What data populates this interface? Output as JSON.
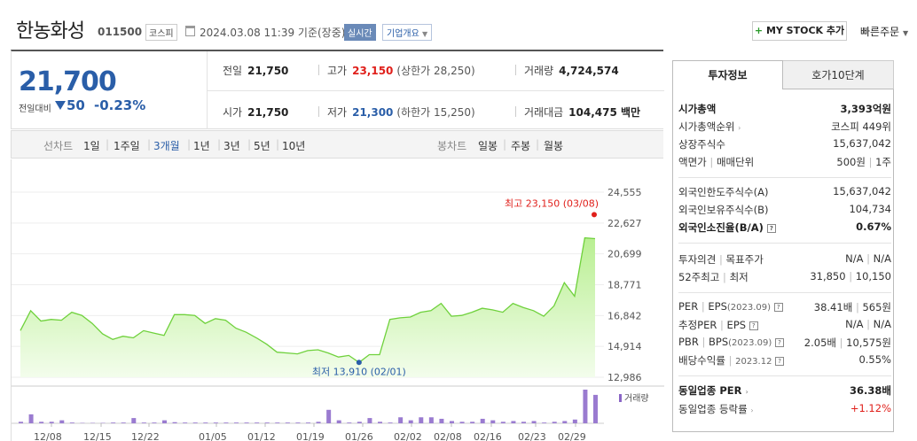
{
  "header": {
    "name": "한농화성",
    "code": "011500",
    "market": "코스피",
    "date": "2024.03.08 11:39 기준(장중)",
    "realtime": "실시간",
    "overview": "기업개요",
    "mystock": "MY STOCK 추가",
    "quick_order": "빠른주문"
  },
  "price": {
    "current": "21,700",
    "diff_label": "전일대비",
    "change": "50",
    "change_pct": "-0.23%",
    "direction": "down"
  },
  "quote": {
    "prev_label": "전일",
    "prev": "21,750",
    "high_label": "고가",
    "high": "23,150",
    "upper_limit": "(상한가 28,250)",
    "volume_label": "거래량",
    "volume": "4,724,574",
    "open_label": "시가",
    "open": "21,750",
    "low_label": "저가",
    "low": "21,300",
    "lower_limit": "(하한가 15,250)",
    "amount_label": "거래대금",
    "amount": "104,475 백만"
  },
  "periods": {
    "line_label": "선차트",
    "line": [
      "1일",
      "1주일",
      "3개월",
      "1년",
      "3년",
      "5년",
      "10년"
    ],
    "selected": "3개월",
    "candle_label": "봉차트",
    "candle": [
      "일봉",
      "주봉",
      "월봉"
    ]
  },
  "chart_data": {
    "type": "area",
    "y_ticks": [
      "24,555",
      "22,627",
      "20,699",
      "18,771",
      "16,842",
      "14,914",
      "12,986"
    ],
    "ylim": [
      12986,
      24555
    ],
    "x_ticks": [
      "12/08",
      "12/15",
      "12/22",
      "01/05",
      "01/12",
      "01/19",
      "01/26",
      "02/02",
      "02/08",
      "02/16",
      "02/23",
      "02/29"
    ],
    "values": [
      15900,
      17150,
      16500,
      16600,
      16550,
      17050,
      16850,
      16350,
      15700,
      15350,
      15550,
      15450,
      15900,
      15750,
      15600,
      16900,
      16900,
      16850,
      16350,
      16650,
      16550,
      16050,
      15800,
      15450,
      15050,
      14550,
      14500,
      14450,
      14650,
      14700,
      14500,
      14250,
      14350,
      13910,
      14400,
      14400,
      16600,
      16700,
      16750,
      17050,
      17150,
      17600,
      16800,
      16850,
      17050,
      17300,
      17200,
      17050,
      17600,
      17350,
      17150,
      16800,
      17450,
      18900,
      18050,
      21700,
      21650
    ],
    "volumes": [
      2,
      12,
      2,
      2,
      4,
      1,
      0.5,
      0.5,
      0.5,
      1,
      1,
      7,
      1,
      1,
      4,
      1.5,
      1,
      1,
      1,
      1,
      1,
      1,
      1,
      1,
      1,
      1,
      1,
      1,
      1,
      2,
      18,
      4,
      1,
      2,
      7,
      2,
      1,
      8,
      4,
      8,
      8,
      6,
      3,
      2,
      2,
      6,
      4,
      2,
      3,
      2,
      3,
      1,
      2,
      3,
      5,
      45,
      38
    ],
    "volume_label": "거래량",
    "max_label": "최고 23,150 (03/08)",
    "min_label": "최저 13,910 (02/01)"
  },
  "panel": {
    "tab_info": "투자정보",
    "tab_orderbook": "호가10단계",
    "rows": {
      "market_cap": {
        "label": "시가총액",
        "value": "3,393억원"
      },
      "market_cap_rank": {
        "label": "시가총액순위",
        "value": "코스피 449위"
      },
      "shares": {
        "label": "상장주식수",
        "value": "15,637,042"
      },
      "face": {
        "label": "액면가",
        "label2": "매매단위",
        "value": "500원",
        "value2": "1주"
      },
      "foreign_limit": {
        "label": "외국인한도주식수(A)",
        "value": "15,637,042"
      },
      "foreign_hold": {
        "label": "외국인보유주식수(B)",
        "value": "104,734"
      },
      "foreign_ratio": {
        "label": "외국인소진율(B/A)",
        "value": "0.67%"
      },
      "opinion": {
        "label": "투자의견",
        "label2": "목표주가",
        "value": "N/A",
        "value2": "N/A"
      },
      "week52": {
        "label": "52주최고",
        "label2": "최저",
        "value": "31,850",
        "value2": "10,150"
      },
      "per": {
        "label": "PER",
        "label2": "EPS",
        "period": "(2023.09)",
        "value": "38.41배",
        "value2": "565원"
      },
      "est_per": {
        "label": "추정PER",
        "label2": "EPS",
        "value": "N/A",
        "value2": "N/A"
      },
      "pbr": {
        "label": "PBR",
        "label2": "BPS",
        "period": "(2023.09)",
        "value": "2.05배",
        "value2": "10,575원"
      },
      "dividend": {
        "label": "배당수익률",
        "period": "2023.12",
        "value": "0.55%"
      },
      "sector_per": {
        "label": "동일업종 PER",
        "value": "36.38배"
      },
      "sector_change": {
        "label": "동일업종 등락률",
        "value": "+1.12%"
      }
    }
  }
}
